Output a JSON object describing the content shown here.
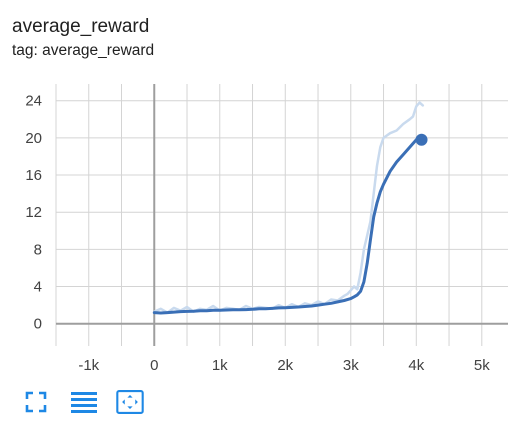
{
  "card": {
    "title": "average_reward",
    "tag": "tag: average_reward"
  },
  "toolbar": {
    "buttons": [
      {
        "icon": "fullscreen-icon"
      },
      {
        "icon": "toggle-log-scale-icon"
      },
      {
        "icon": "fit-domain-icon",
        "active": true
      }
    ]
  },
  "colors": {
    "smoothed": "#3a6fb6",
    "raw": "#c9daee",
    "grid": "#d4d4d4",
    "axis": "#9e9e9e",
    "accent": "#1e88e5"
  },
  "chart_data": {
    "type": "line",
    "title": "average_reward",
    "subtitle": "tag: average_reward",
    "xlabel": "",
    "ylabel": "",
    "xlim": [
      -1500,
      5400
    ],
    "ylim": [
      -2.4,
      25.8
    ],
    "x_ticks": [
      -1000,
      0,
      1000,
      2000,
      3000,
      4000,
      5000
    ],
    "x_tick_labels": [
      "-1k",
      "0",
      "1k",
      "2k",
      "3k",
      "4k",
      "5k"
    ],
    "y_ticks": [
      0,
      4,
      8,
      12,
      16,
      20,
      24
    ],
    "y_tick_labels": [
      "0",
      "4",
      "8",
      "12",
      "16",
      "20",
      "24"
    ],
    "grid": true,
    "series": [
      {
        "role": "raw",
        "x": [
          0,
          100,
          200,
          300,
          400,
          500,
          600,
          700,
          800,
          900,
          1000,
          1100,
          1200,
          1300,
          1400,
          1500,
          1600,
          1700,
          1800,
          1900,
          2000,
          2100,
          2200,
          2300,
          2400,
          2500,
          2600,
          2700,
          2800,
          2900,
          2950,
          3000,
          3050,
          3100,
          3150,
          3200,
          3250,
          3300,
          3350,
          3400,
          3450,
          3500,
          3600,
          3700,
          3800,
          3900,
          3950,
          4000,
          4050,
          4100
        ],
        "y": [
          1.3,
          1.6,
          1.2,
          1.7,
          1.4,
          1.8,
          1.3,
          1.6,
          1.5,
          1.9,
          1.4,
          1.7,
          1.6,
          1.5,
          1.9,
          1.6,
          1.8,
          1.7,
          1.6,
          2.0,
          1.7,
          2.1,
          1.8,
          2.2,
          2.0,
          2.4,
          2.1,
          2.6,
          2.5,
          3.0,
          3.2,
          3.6,
          4.0,
          3.7,
          5.5,
          8.0,
          9.5,
          11.0,
          14.0,
          17.0,
          19.0,
          20.0,
          20.5,
          20.8,
          21.5,
          22.0,
          22.3,
          23.4,
          23.8,
          23.5
        ]
      },
      {
        "role": "smoothed",
        "x": [
          0,
          100,
          200,
          300,
          400,
          500,
          600,
          700,
          800,
          900,
          1000,
          1100,
          1200,
          1300,
          1400,
          1500,
          1600,
          1700,
          1800,
          1900,
          2000,
          2100,
          2200,
          2300,
          2400,
          2500,
          2600,
          2700,
          2800,
          2900,
          3000,
          3050,
          3100,
          3150,
          3200,
          3250,
          3300,
          3350,
          3400,
          3450,
          3500,
          3600,
          3700,
          3800,
          3900,
          4000,
          4050,
          4100
        ],
        "y": [
          1.2,
          1.15,
          1.2,
          1.25,
          1.3,
          1.32,
          1.35,
          1.4,
          1.4,
          1.45,
          1.45,
          1.48,
          1.5,
          1.5,
          1.52,
          1.55,
          1.6,
          1.6,
          1.65,
          1.7,
          1.72,
          1.75,
          1.8,
          1.85,
          1.9,
          2.0,
          2.1,
          2.2,
          2.35,
          2.5,
          2.7,
          2.9,
          3.1,
          3.5,
          4.5,
          6.5,
          9.0,
          11.5,
          13.0,
          14.2,
          15.0,
          16.4,
          17.4,
          18.2,
          19.0,
          19.8,
          19.7,
          19.8
        ]
      }
    ],
    "highlight_point": {
      "x": 4080,
      "y": 19.8
    }
  }
}
